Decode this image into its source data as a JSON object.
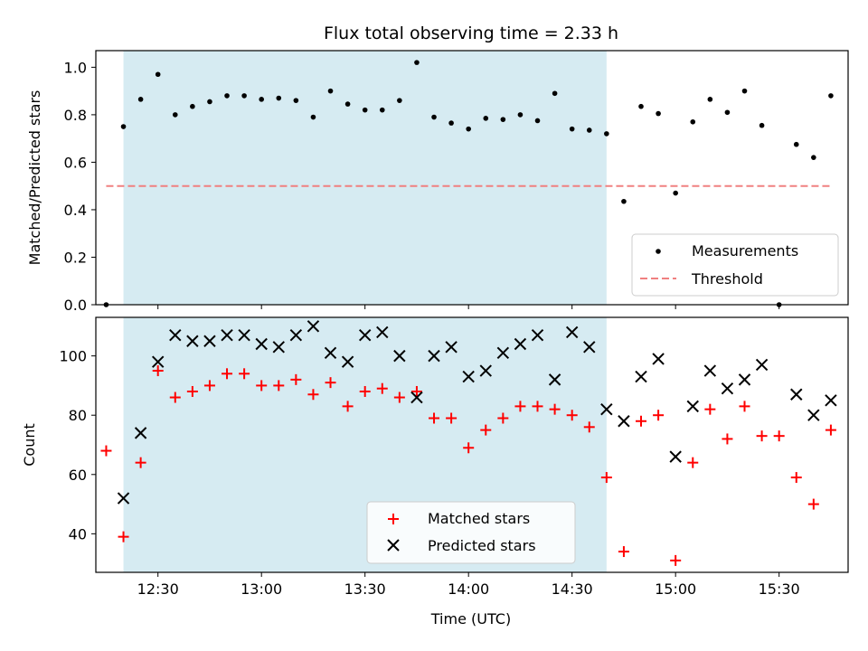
{
  "chart_data": [
    {
      "type": "scatter",
      "title": "Flux total observing time = 2.33 h",
      "xlabel": "",
      "ylabel": "Matched/Predicted stars",
      "ylim": [
        0.0,
        1.07
      ],
      "yticks": [
        "0.0",
        "0.2",
        "0.4",
        "0.6",
        "0.8",
        "1.0"
      ],
      "ytick_values": [
        0.0,
        0.2,
        0.4,
        0.6,
        0.8,
        1.0
      ],
      "xlim": [
        "12:12",
        "15:50"
      ],
      "xticks": [
        "12:30",
        "13:00",
        "13:30",
        "14:00",
        "14:30",
        "15:00",
        "15:30"
      ],
      "shaded_span": [
        "12:20",
        "14:40"
      ],
      "shaded_color": "#add8e6",
      "threshold": {
        "name": "Threshold",
        "y": 0.5,
        "x_range": [
          "12:15",
          "15:45"
        ],
        "color": "#f08080"
      },
      "series": [
        {
          "name": "Measurements",
          "color": "#000000",
          "x": [
            "12:15",
            "12:20",
            "12:25",
            "12:30",
            "12:35",
            "12:40",
            "12:45",
            "12:50",
            "12:55",
            "13:00",
            "13:05",
            "13:10",
            "13:15",
            "13:20",
            "13:25",
            "13:30",
            "13:35",
            "13:40",
            "13:45",
            "13:50",
            "13:55",
            "14:00",
            "14:05",
            "14:10",
            "14:15",
            "14:20",
            "14:25",
            "14:30",
            "14:35",
            "14:40",
            "14:45",
            "14:50",
            "14:55",
            "15:00",
            "15:05",
            "15:10",
            "15:15",
            "15:20",
            "15:25",
            "15:30",
            "15:35",
            "15:40",
            "15:45"
          ],
          "y": [
            0.0,
            0.75,
            0.865,
            0.97,
            0.8,
            0.835,
            0.855,
            0.88,
            0.88,
            0.865,
            0.87,
            0.86,
            0.79,
            0.9,
            0.845,
            0.82,
            0.82,
            0.86,
            1.02,
            0.79,
            0.765,
            0.74,
            0.785,
            0.78,
            0.8,
            0.775,
            0.89,
            0.74,
            0.735,
            0.72,
            0.435,
            0.835,
            0.805,
            0.47,
            0.77,
            0.865,
            0.81,
            0.9,
            0.755,
            0.0,
            0.675,
            0.62,
            0.88
          ]
        }
      ],
      "legend": {
        "position": "lower-right",
        "entries": [
          "Measurements",
          "Threshold"
        ]
      }
    },
    {
      "type": "scatter",
      "title": "",
      "xlabel": "Time (UTC)",
      "ylabel": "Count",
      "ylim": [
        27,
        113
      ],
      "yticks": [
        "40",
        "60",
        "80",
        "100"
      ],
      "ytick_values": [
        40,
        60,
        80,
        100
      ],
      "xlim": [
        "12:12",
        "15:50"
      ],
      "xticks": [
        "12:30",
        "13:00",
        "13:30",
        "14:00",
        "14:30",
        "15:00",
        "15:30"
      ],
      "shaded_span": [
        "12:20",
        "14:40"
      ],
      "shaded_color": "#add8e6",
      "series": [
        {
          "name": "Matched stars",
          "marker": "plus",
          "color": "#ff0000",
          "x": [
            "12:15",
            "12:20",
            "12:25",
            "12:30",
            "12:35",
            "12:40",
            "12:45",
            "12:50",
            "12:55",
            "13:00",
            "13:05",
            "13:10",
            "13:15",
            "13:20",
            "13:25",
            "13:30",
            "13:35",
            "13:40",
            "13:45",
            "13:50",
            "13:55",
            "14:00",
            "14:05",
            "14:10",
            "14:15",
            "14:20",
            "14:25",
            "14:30",
            "14:35",
            "14:40",
            "14:45",
            "14:50",
            "14:55",
            "15:00",
            "15:05",
            "15:10",
            "15:15",
            "15:20",
            "15:25",
            "15:30",
            "15:35",
            "15:40",
            "15:45"
          ],
          "y": [
            68,
            39,
            64,
            95,
            86,
            88,
            90,
            94,
            94,
            90,
            90,
            92,
            87,
            91,
            83,
            88,
            89,
            86,
            88,
            79,
            79,
            69,
            75,
            79,
            83,
            83,
            82,
            80,
            76,
            59,
            34,
            78,
            80,
            31,
            64,
            82,
            72,
            83,
            73,
            73,
            59,
            50,
            75
          ]
        },
        {
          "name": "Predicted stars",
          "marker": "x",
          "color": "#000000",
          "x": [
            "12:20",
            "12:25",
            "12:30",
            "12:35",
            "12:40",
            "12:45",
            "12:50",
            "12:55",
            "13:00",
            "13:05",
            "13:10",
            "13:15",
            "13:20",
            "13:25",
            "13:30",
            "13:35",
            "13:40",
            "13:45",
            "13:50",
            "13:55",
            "14:00",
            "14:05",
            "14:10",
            "14:15",
            "14:20",
            "14:25",
            "14:30",
            "14:35",
            "14:40",
            "14:45",
            "14:50",
            "14:55",
            "15:00",
            "15:05",
            "15:10",
            "15:15",
            "15:20",
            "15:25",
            "15:35",
            "15:40",
            "15:45"
          ],
          "y": [
            52,
            74,
            98,
            107,
            105,
            105,
            107,
            107,
            104,
            103,
            107,
            110,
            101,
            98,
            107,
            108,
            100,
            86,
            100,
            103,
            93,
            95,
            101,
            104,
            107,
            92,
            108,
            103,
            82,
            78,
            93,
            99,
            66,
            83,
            95,
            89,
            92,
            97,
            87,
            80,
            85
          ]
        }
      ],
      "legend": {
        "position": "lower-center",
        "entries": [
          "Matched stars",
          "Predicted stars"
        ]
      }
    }
  ]
}
